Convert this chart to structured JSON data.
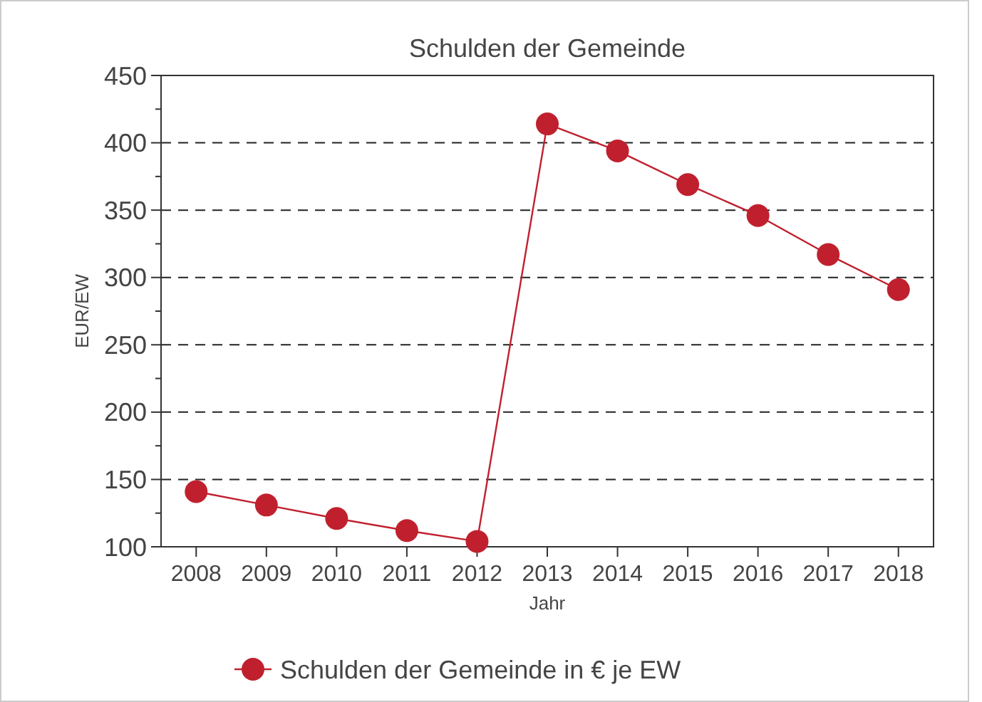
{
  "chart_data": {
    "type": "line",
    "title": "Schulden der Gemeinde",
    "xlabel": "Jahr",
    "ylabel": "EUR/EW",
    "categories": [
      "2008",
      "2009",
      "2010",
      "2011",
      "2012",
      "2013",
      "2014",
      "2015",
      "2016",
      "2017",
      "2018"
    ],
    "series": [
      {
        "name": "Schulden der Gemeinde in € je EW",
        "color": "#c0202e",
        "values": [
          141,
          131,
          121,
          112,
          104,
          414,
          394,
          369,
          346,
          317,
          291
        ]
      }
    ],
    "ylim": [
      100,
      450
    ],
    "yticks": [
      100,
      {
        "value": 125,
        "label": null
      },
      150,
      {
        "value": 175,
        "label": null
      },
      200,
      {
        "value": 225,
        "label": null
      },
      250,
      {
        "value": 275,
        "label": null
      },
      300,
      {
        "value": 325,
        "label": null
      },
      350,
      {
        "value": 375,
        "label": null
      },
      400,
      {
        "value": 425,
        "label": null
      },
      450
    ],
    "grid": "y",
    "legend": "bottom",
    "marker": "circle",
    "line_style": "solid"
  }
}
